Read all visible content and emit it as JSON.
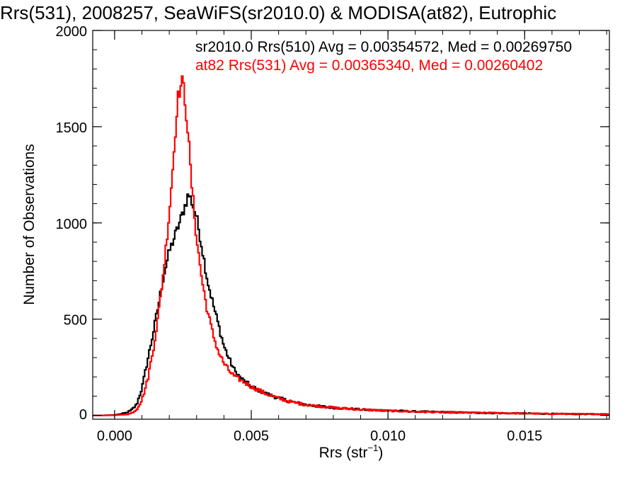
{
  "chart_data": {
    "type": "line",
    "title": "Rrs(531), 2008257, SeaWiFS(sr2010.0) & MODISA(at82), Eutrophic",
    "xlabel_main": "Rrs (str",
    "xlabel_sup": "−1",
    "xlabel_close": ")",
    "ylabel": "Number of Observations",
    "xlim": [
      -0.0008,
      0.0181
    ],
    "ylim": [
      -20,
      2000
    ],
    "x_ticks": [
      {
        "value": 0.0,
        "label": "0.000"
      },
      {
        "value": 0.005,
        "label": "0.005"
      },
      {
        "value": 0.01,
        "label": "0.010"
      },
      {
        "value": 0.015,
        "label": "0.015"
      }
    ],
    "y_ticks": [
      {
        "value": 0,
        "label": "0"
      },
      {
        "value": 500,
        "label": "500"
      },
      {
        "value": 1000,
        "label": "1000"
      },
      {
        "value": 1500,
        "label": "1500"
      },
      {
        "value": 2000,
        "label": "2000"
      }
    ],
    "bin_width": 5e-05,
    "series": [
      {
        "key": "sr2010",
        "legend_text": "sr2010.0 Rrs(510) Avg = 0.00354572, Med = 0.00269750",
        "color": "#000000",
        "points": [
          [
            -0.0004,
            0
          ],
          [
            0.0,
            2
          ],
          [
            0.0002,
            6
          ],
          [
            0.0004,
            12
          ],
          [
            0.0006,
            25
          ],
          [
            0.0008,
            55
          ],
          [
            0.001,
            140
          ],
          [
            0.0012,
            280
          ],
          [
            0.0014,
            420
          ],
          [
            0.0016,
            570
          ],
          [
            0.0018,
            730
          ],
          [
            0.002,
            850
          ],
          [
            0.0022,
            930
          ],
          [
            0.0024,
            1010
          ],
          [
            0.0026,
            1100
          ],
          [
            0.0027,
            1150
          ],
          [
            0.0028,
            1120
          ],
          [
            0.003,
            1030
          ],
          [
            0.0032,
            870
          ],
          [
            0.0034,
            700
          ],
          [
            0.0036,
            580
          ],
          [
            0.0038,
            470
          ],
          [
            0.004,
            360
          ],
          [
            0.0042,
            290
          ],
          [
            0.0044,
            230
          ],
          [
            0.0046,
            195
          ],
          [
            0.005,
            150
          ],
          [
            0.0055,
            115
          ],
          [
            0.006,
            90
          ],
          [
            0.0065,
            70
          ],
          [
            0.007,
            55
          ],
          [
            0.008,
            40
          ],
          [
            0.009,
            30
          ],
          [
            0.01,
            25
          ],
          [
            0.011,
            20
          ],
          [
            0.012,
            17
          ],
          [
            0.013,
            14
          ],
          [
            0.014,
            12
          ],
          [
            0.015,
            10
          ],
          [
            0.016,
            8
          ],
          [
            0.017,
            7
          ],
          [
            0.018,
            6
          ]
        ]
      },
      {
        "key": "at82",
        "legend_text": "at82 Rrs(531) Avg = 0.00365340, Med = 0.00260402",
        "color": "#ff0000",
        "points": [
          [
            -0.0004,
            0
          ],
          [
            0.0,
            1
          ],
          [
            0.0004,
            4
          ],
          [
            0.0006,
            10
          ],
          [
            0.0008,
            30
          ],
          [
            0.001,
            80
          ],
          [
            0.0012,
            180
          ],
          [
            0.0014,
            330
          ],
          [
            0.0016,
            520
          ],
          [
            0.0018,
            760
          ],
          [
            0.002,
            1050
          ],
          [
            0.0022,
            1420
          ],
          [
            0.0023,
            1640
          ],
          [
            0.0024,
            1700
          ],
          [
            0.0025,
            1740
          ],
          [
            0.0026,
            1600
          ],
          [
            0.0027,
            1450
          ],
          [
            0.0028,
            1230
          ],
          [
            0.003,
            920
          ],
          [
            0.0032,
            700
          ],
          [
            0.0034,
            540
          ],
          [
            0.0036,
            420
          ],
          [
            0.0038,
            330
          ],
          [
            0.004,
            270
          ],
          [
            0.0042,
            230
          ],
          [
            0.0044,
            200
          ],
          [
            0.0046,
            185
          ],
          [
            0.005,
            150
          ],
          [
            0.0055,
            115
          ],
          [
            0.006,
            88
          ],
          [
            0.0065,
            68
          ],
          [
            0.007,
            55
          ],
          [
            0.008,
            40
          ],
          [
            0.009,
            30
          ],
          [
            0.01,
            24
          ],
          [
            0.011,
            19
          ],
          [
            0.012,
            16
          ],
          [
            0.013,
            14
          ],
          [
            0.014,
            12
          ],
          [
            0.015,
            10
          ],
          [
            0.016,
            8
          ],
          [
            0.017,
            7
          ],
          [
            0.018,
            6
          ]
        ]
      }
    ]
  }
}
